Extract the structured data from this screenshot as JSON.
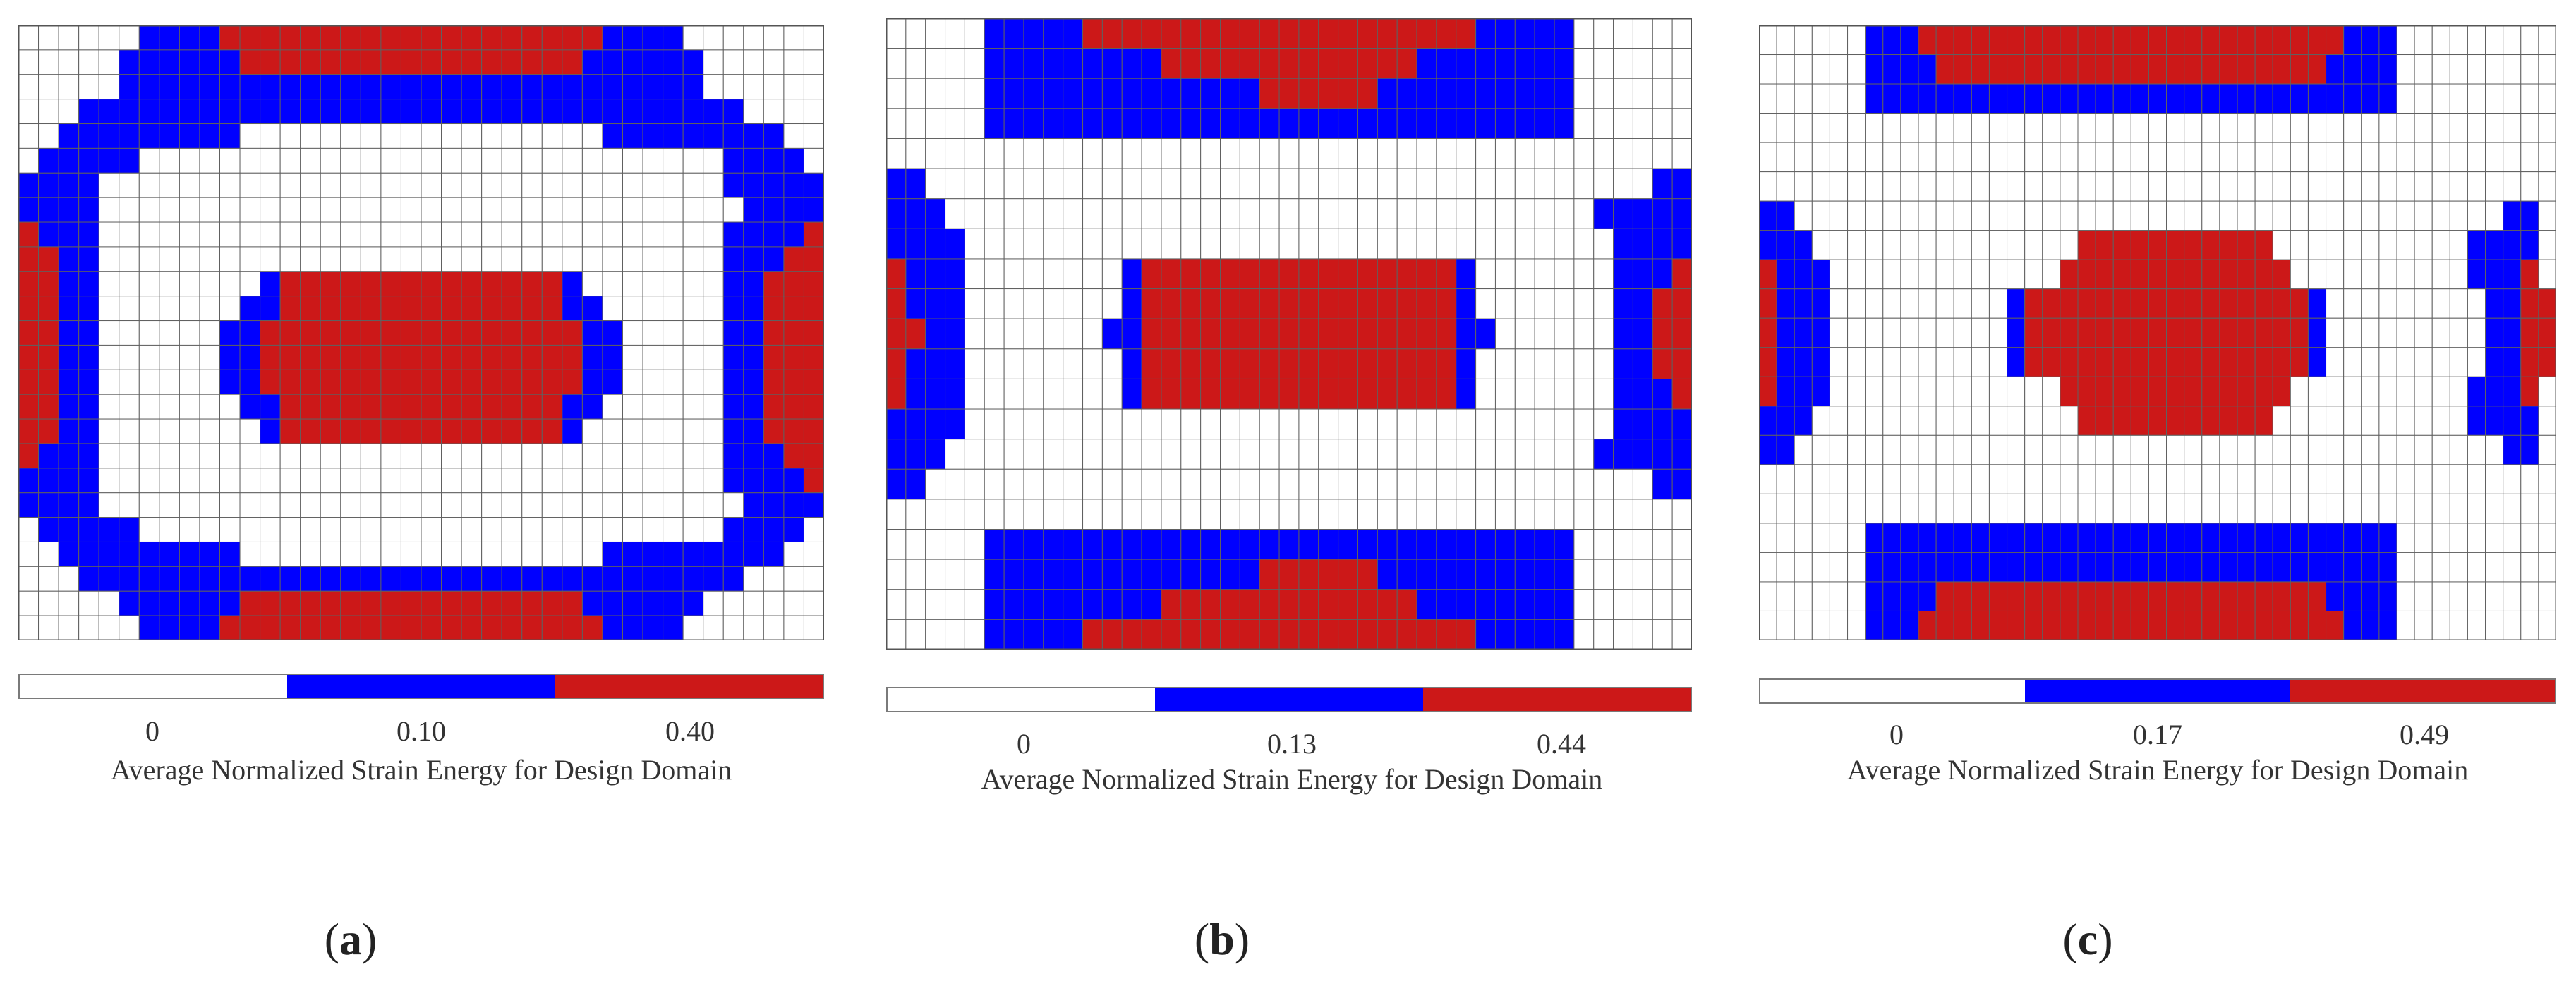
{
  "colors": {
    "low": "#ffffff",
    "mid": "#0000ff",
    "high": "#cc1818",
    "gridline": "#606060"
  },
  "panels": [
    {
      "id": "a",
      "label_open": "(",
      "label_letter": "a",
      "label_close": ")",
      "colorbar": {
        "ticks": [
          "0",
          "0.10",
          "0.40"
        ],
        "title": "Average Normalized Strain Energy for Design Domain"
      },
      "rows": [
        "000000WWWWRRRRRRRRRRRRRRRRRRRWWWW000000",
        "00000WWWWWWRRRRRRRRRRRRRRRRRWWWWWW00000",
        "00000WWWWWWWWWWWWWWWWWWWWWWWWWWWWW00000",
        "000WWWWWWWWWWWWWWWWWWWWWWWWWWWWWWWWW000",
        "00WWWWWWWWW000000000000000000WWWWWWWWW00",
        "0WWWWW00000000000000000000000000000WWWW0",
        "WWWW0000000000000000000000000000000WWWWW",
        "WWWW00000000000000000000000000000000WWWW",
        "RWWW0000000000000000000000000000000WWWWR",
        "RRWW0000000000000000000000000000000WWWRR",
        "RRWW00000000WRRRRRRRRRRRRRRW0000000WWRRR",
        "RRWW0000000WWRRRRRRRRRRRRRRWW000000WWRRR",
        "RRWW000000WWRRRRRRRRRRRRRRRRWW00000WWRRR",
        "RRWW000000WWRRRRRRRRRRRRRRRRWW00000WWRRR",
        "RRWW000000WWRRRRRRRRRRRRRRRRWW00000WWRRR",
        "RRWW0000000WWRRRRRRRRRRRRRRWW000000WWRRR",
        "RRWW00000000WRRRRRRRRRRRRRRW0000000WWRRR",
        "RWWW0000000000000000000000000000000WWWRR",
        "WWWW0000000000000000000000000000000WWWWR",
        "WWWW00000000000000000000000000000000WWWW",
        "0WWWWW00000000000000000000000000000WWWW0",
        "00WWWWWWWWW000000000000000000WWWWWWWWW00",
        "000WWWWWWWWWWWWWWWWWWWWWWWWWWWWWWWWW000",
        "00000WWWWWWRRRRRRRRRRRRRRRRRWWWWWW00000",
        "000000WWWWRRRRRRRRRRRRRRRRRRRWWWW000000"
      ]
    },
    {
      "id": "b",
      "label_open": "(",
      "label_letter": "b",
      "label_close": ")",
      "colorbar": {
        "ticks": [
          "0",
          "0.13",
          "0.44"
        ],
        "title": "Average Normalized Strain Energy for Design Domain"
      },
      "rows": [
        "00000WWWWWRRRRRRRRRRRRRRRRRRRRWWWWW00000",
        "00000WWWWWWWWWRRRRRRRRRRRRRWWWWWWWW00000",
        "00000WWWWWWWWWWWWWWRRRRRRWWWWWWWWWW00000",
        "00000WWWWWWWWWWWWWWWWWWWWWWWWWWWWWW00000",
        "0000000000000000000000000000000000000000",
        "WW0000000000000000000000000000000000000WW",
        "WWW000000000000000000000000000000000WWWWW",
        "WWWW000000000000000000000000000000000WWWW",
        "RWWW00000000WRRRRRRRRRRRRRRRRW0000000WWWR",
        "RWWW00000000WRRRRRRRRRRRRRRRRW0000000WWRR",
        "RRWW0000000WWRRRRRRRRRRRRRRRRWW000000WWRR",
        "RWWW00000000WRRRRRRRRRRRRRRRRW0000000WWRR",
        "RWWW00000000WRRRRRRRRRRRRRRRRW0000000WWWR",
        "WWWW000000000000000000000000000000000WWWW",
        "WWW000000000000000000000000000000000WWWWW",
        "WW0000000000000000000000000000000000000WW",
        "0000000000000000000000000000000000000000",
        "00000WWWWWWWWWWWWWWWWWWWWWWWWWWWWWW00000",
        "00000WWWWWWWWWWWWWWRRRRRRWWWWWWWWWW00000",
        "00000WWWWWWWWWRRRRRRRRRRRRRWWWWWWWW00000",
        "00000WWWWWRRRRRRRRRRRRRRRRRRRRWWWWW00000"
      ]
    },
    {
      "id": "c",
      "label_open": "(",
      "label_letter": "c",
      "label_close": ")",
      "colorbar": {
        "ticks": [
          "0",
          "0.17",
          "0.49"
        ],
        "title": "Average Normalized Strain Energy for Design Domain"
      },
      "rows": [
        "000000WWWRRRRRRRRRRRRRRRRRRRRRRRRWWW000000",
        "000000WWWWRRRRRRRRRRRRRRRRRRRRRRWWWW000000",
        "000000WWWWWWWWWWWWWWWWWWWWWWWWWWWWWW000000",
        "0000000000000000000000000000000000000000000",
        "0000000000000000000000000000000000000000000",
        "0000000000000000000000000000000000000000000",
        "WW0000000000000000000000000000000000000000WW",
        "WWW000000000000000RRRRRRRRRRR00000000000WWWW",
        "RWWW0000000000000RRRRRRRRRRRRR0000000000WWWR",
        "RWWW0000000000WRRRRRRRRRRRRRRRRW000000000WWRR",
        "RWWW0000000000WRRRRRRRRRRRRRRRRW000000000WWRR",
        "RWWW0000000000WRRRRRRRRRRRRRRRRW000000000WWRR",
        "RWWW0000000000000RRRRRRRRRRRRR0000000000WWWR",
        "WWW000000000000000RRRRRRRRRRR00000000000WWWW",
        "WW0000000000000000000000000000000000000000WW",
        "0000000000000000000000000000000000000000000",
        "0000000000000000000000000000000000000000000",
        "000000WWWWWWWWWWWWWWWWWWWWWWWWWWWWWW000000",
        "000000WWWWWWWWWWWWWWWWWWWWWWWWWWWWWW000000",
        "000000WWWWRRRRRRRRRRRRRRRRRRRRRRWWWW000000",
        "000000WWWRRRRRRRRRRRRRRRRRRRRRRRRWWW000000"
      ]
    }
  ]
}
